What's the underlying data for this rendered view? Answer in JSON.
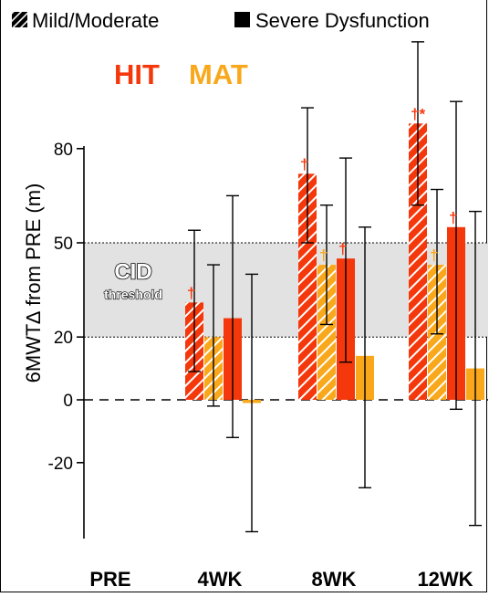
{
  "colors": {
    "hit": "#f5380c",
    "mat": "#f9a81b",
    "cid_band": "#e2e2e2"
  },
  "chart_data": {
    "type": "bar",
    "title_labels": {
      "hit": "HIT",
      "mat": "MAT"
    },
    "legend": [
      {
        "label": "Mild/Moderate",
        "pattern": "hatched",
        "icon": "hatched-square-icon"
      },
      {
        "label": "Severe Dysfunction",
        "pattern": "solid",
        "icon": "solid-square-icon"
      }
    ],
    "ylabel": "6MWT∆ from PRE (m)",
    "yticks": [
      -20,
      0,
      20,
      50,
      80
    ],
    "ylim": [
      -45,
      90
    ],
    "categories": [
      "PRE",
      "4WK",
      "8WK",
      "12WK"
    ],
    "cid": {
      "label_main": "CID",
      "label_sub": "threshold",
      "low": 20,
      "high": 50
    },
    "series": [
      {
        "training": "HIT",
        "severity": "Mild/Moderate",
        "pattern": "hatched",
        "values": [
          null,
          31,
          72,
          88
        ],
        "error_low": [
          null,
          9,
          50,
          62
        ],
        "error_high": [
          null,
          54,
          93,
          114
        ],
        "markers": [
          "",
          "†",
          "†",
          "†*"
        ]
      },
      {
        "training": "MAT",
        "severity": "Mild/Moderate",
        "pattern": "hatched",
        "values": [
          null,
          20,
          43,
          43
        ],
        "error_low": [
          null,
          -2,
          24,
          21
        ],
        "error_high": [
          null,
          43,
          62,
          67
        ],
        "markers": [
          "",
          "",
          "†",
          "†"
        ]
      },
      {
        "training": "HIT",
        "severity": "Severe Dysfunction",
        "pattern": "solid",
        "values": [
          null,
          26,
          45,
          55
        ],
        "error_low": [
          null,
          -12,
          12,
          -3
        ],
        "error_high": [
          null,
          65,
          77,
          95
        ],
        "markers": [
          "",
          "",
          "†",
          "†"
        ]
      },
      {
        "training": "MAT",
        "severity": "Severe Dysfunction",
        "pattern": "solid",
        "values": [
          null,
          -1,
          14,
          10
        ],
        "error_low": [
          null,
          -42,
          -28,
          -40
        ],
        "error_high": [
          null,
          40,
          55,
          60
        ],
        "markers": [
          "",
          "",
          "",
          ""
        ]
      }
    ]
  }
}
